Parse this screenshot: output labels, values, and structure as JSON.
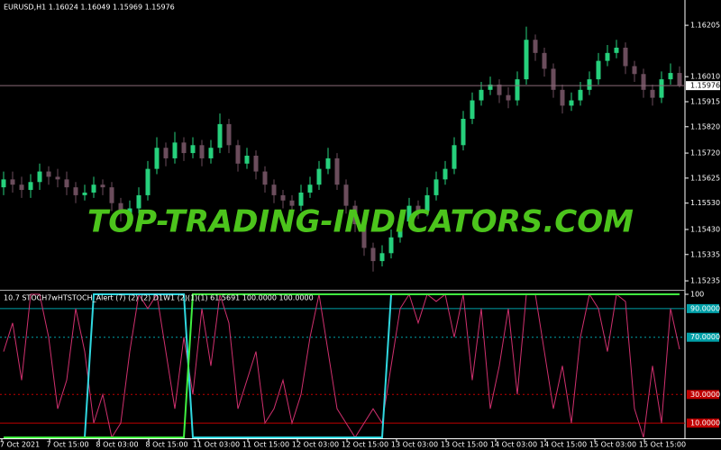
{
  "chart_data": [
    {
      "type": "candlestick",
      "title": "EURUSD,H1  1.16024 1.16049 1.15969 1.15976",
      "open": [
        1.1559,
        1.1562,
        1.156,
        1.1558,
        1.1561,
        1.1565,
        1.1563,
        1.1562,
        1.1559,
        1.1556,
        1.1557,
        1.156,
        1.1559,
        1.1553,
        1.1549,
        1.1551,
        1.1556,
        1.1566,
        1.1574,
        1.157,
        1.1576,
        1.1572,
        1.1575,
        1.157,
        1.1574,
        1.1583,
        1.1575,
        1.1568,
        1.1571,
        1.1565,
        1.156,
        1.1556,
        1.1554,
        1.1552,
        1.1557,
        1.156,
        1.1566,
        1.157,
        1.156,
        1.1552,
        1.1545,
        1.1536,
        1.1531,
        1.1534,
        1.154,
        1.1546,
        1.1552,
        1.155,
        1.1556,
        1.1562,
        1.1566,
        1.1575,
        1.1585,
        1.1592,
        1.1596,
        1.1598,
        1.1594,
        1.1592,
        1.16,
        1.1615,
        1.161,
        1.1604,
        1.1596,
        1.159,
        1.1592,
        1.1596,
        1.16,
        1.1607,
        1.161,
        1.1612,
        1.1605,
        1.1602,
        1.1596,
        1.1593,
        1.16,
        1.16024
      ],
      "high": [
        1.1565,
        1.1565,
        1.1563,
        1.1564,
        1.1568,
        1.1567,
        1.1566,
        1.1565,
        1.1561,
        1.156,
        1.1563,
        1.1562,
        1.1561,
        1.1555,
        1.1554,
        1.1559,
        1.1569,
        1.1578,
        1.1576,
        1.158,
        1.1578,
        1.1578,
        1.1577,
        1.1577,
        1.1587,
        1.1585,
        1.1577,
        1.1574,
        1.1573,
        1.1567,
        1.1562,
        1.1558,
        1.1556,
        1.156,
        1.1563,
        1.1569,
        1.1574,
        1.1572,
        1.1562,
        1.1554,
        1.1547,
        1.1538,
        1.1537,
        1.1543,
        1.1549,
        1.1555,
        1.1554,
        1.1559,
        1.1565,
        1.1569,
        1.1578,
        1.1588,
        1.1595,
        1.1599,
        1.1601,
        1.16,
        1.1597,
        1.1603,
        1.162,
        1.1617,
        1.1612,
        1.1606,
        1.1598,
        1.1595,
        1.1599,
        1.1603,
        1.161,
        1.1613,
        1.1615,
        1.1614,
        1.1607,
        1.1604,
        1.1598,
        1.1603,
        1.1606,
        1.16049
      ],
      "low": [
        1.1556,
        1.1557,
        1.1555,
        1.1555,
        1.1558,
        1.156,
        1.1559,
        1.1556,
        1.1553,
        1.1554,
        1.1555,
        1.1556,
        1.155,
        1.1546,
        1.1547,
        1.1549,
        1.1554,
        1.1564,
        1.1567,
        1.1568,
        1.1569,
        1.157,
        1.1567,
        1.1568,
        1.1572,
        1.1572,
        1.1565,
        1.1566,
        1.1562,
        1.1557,
        1.1553,
        1.1551,
        1.1549,
        1.155,
        1.1555,
        1.1558,
        1.1564,
        1.1558,
        1.1549,
        1.1542,
        1.1533,
        1.1527,
        1.1529,
        1.1532,
        1.1538,
        1.1544,
        1.1547,
        1.1548,
        1.1554,
        1.156,
        1.1564,
        1.1573,
        1.1583,
        1.159,
        1.1594,
        1.1591,
        1.1589,
        1.159,
        1.1598,
        1.1607,
        1.1601,
        1.1593,
        1.1587,
        1.1588,
        1.159,
        1.1594,
        1.1598,
        1.1605,
        1.1608,
        1.1602,
        1.1599,
        1.1593,
        1.159,
        1.1591,
        1.1598,
        1.15969
      ],
      "close": [
        1.1562,
        1.156,
        1.1558,
        1.1561,
        1.1565,
        1.1563,
        1.1562,
        1.1559,
        1.1556,
        1.1557,
        1.156,
        1.1559,
        1.1553,
        1.1549,
        1.1551,
        1.1556,
        1.1566,
        1.1574,
        1.157,
        1.1576,
        1.1572,
        1.1575,
        1.157,
        1.1574,
        1.1583,
        1.1575,
        1.1568,
        1.1571,
        1.1565,
        1.156,
        1.1556,
        1.1554,
        1.1552,
        1.1557,
        1.156,
        1.1566,
        1.157,
        1.156,
        1.1552,
        1.1545,
        1.1536,
        1.1531,
        1.1534,
        1.154,
        1.1546,
        1.1552,
        1.155,
        1.1556,
        1.1562,
        1.1566,
        1.1575,
        1.1585,
        1.1592,
        1.1596,
        1.1598,
        1.1594,
        1.1592,
        1.16,
        1.1615,
        1.161,
        1.1604,
        1.1596,
        1.159,
        1.1592,
        1.1596,
        1.16,
        1.1607,
        1.161,
        1.1612,
        1.1605,
        1.1602,
        1.1596,
        1.1593,
        1.16,
        1.16024,
        1.15976
      ],
      "up_color": "#26d07c",
      "down_color": "#6b4d5c",
      "ylim": [
        1.15201,
        1.16301
      ],
      "yticks": [
        1.16205,
        {
          "value": 1.1601,
          "label": "1.16010"
        },
        1.15915,
        {
          "value": 1.1582,
          "label": "1.15820"
        },
        {
          "value": 1.1572,
          "label": "1.15720"
        },
        1.15625,
        {
          "value": 1.1553,
          "label": "1.15530"
        },
        {
          "value": 1.1543,
          "label": "1.15430"
        },
        1.15335,
        1.15235
      ],
      "last_price": 1.15976,
      "watermark": "TOP-TRADING-INDICATORS.COM"
    },
    {
      "type": "line",
      "title": "10.7 STOCH7wHTSTOCH_Alert (7) (2) (2) D1W1 (2)(1)(1) 61.5691 100.0000 100.0000",
      "series": [
        {
          "color": "#d0306e",
          "values": [
            60,
            80,
            40,
            100,
            100,
            70,
            20,
            40,
            90,
            60,
            10,
            30,
            0,
            10,
            60,
            100,
            90,
            100,
            60,
            20,
            70,
            30,
            90,
            50,
            100,
            80,
            20,
            40,
            60,
            10,
            20,
            40,
            10,
            30,
            70,
            100,
            60,
            20,
            10,
            0,
            10,
            20,
            10,
            50,
            90,
            100,
            80,
            100,
            95,
            100,
            70,
            100,
            40,
            90,
            20,
            50,
            90,
            30,
            100,
            100,
            60,
            20,
            50,
            10,
            70,
            100,
            90,
            60,
            100,
            95,
            20,
            0,
            50,
            10,
            90,
            61.5691
          ]
        },
        {
          "color": "#30d8e0",
          "values": [
            0,
            0,
            0,
            0,
            0,
            0,
            0,
            0,
            0,
            0,
            100,
            100,
            100,
            100,
            100,
            100,
            100,
            100,
            100,
            100,
            100,
            0,
            0,
            0,
            0,
            0,
            0,
            0,
            0,
            0,
            0,
            0,
            0,
            0,
            0,
            0,
            0,
            0,
            0,
            0,
            0,
            0,
            0,
            100,
            100,
            100,
            100,
            100,
            100,
            100,
            100,
            100,
            100,
            100,
            100,
            100,
            100,
            100,
            100,
            100,
            100,
            100,
            100,
            100,
            100,
            100,
            100,
            100,
            100,
            100,
            100,
            100,
            100,
            100,
            100,
            100
          ]
        },
        {
          "color": "#40f040",
          "values": [
            0,
            0,
            0,
            0,
            0,
            0,
            0,
            0,
            0,
            0,
            0,
            0,
            0,
            0,
            0,
            0,
            0,
            0,
            0,
            0,
            0,
            100,
            100,
            100,
            100,
            100,
            100,
            100,
            100,
            100,
            100,
            100,
            100,
            100,
            100,
            100,
            100,
            100,
            100,
            100,
            100,
            100,
            100,
            100,
            100,
            100,
            100,
            100,
            100,
            100,
            100,
            100,
            100,
            100,
            100,
            100,
            100,
            100,
            100,
            100,
            100,
            100,
            100,
            100,
            100,
            100,
            100,
            100,
            100,
            100,
            100,
            100,
            100,
            100,
            100,
            100
          ]
        }
      ],
      "ylim": [
        0,
        100
      ],
      "yticks": [
        100,
        {
          "value": 90,
          "label": "90.0000"
        },
        {
          "value": 70,
          "label": "70.0000"
        },
        {
          "value": 30,
          "label": "30.0000"
        },
        {
          "value": 10,
          "label": "10.0000"
        }
      ],
      "ytick_colors": [
        "#000000",
        "#00a0a8",
        "#00a0a8",
        "#c00000",
        "#c00000"
      ]
    }
  ],
  "time_axis": [
    "7 Oct 2021",
    "7 Oct 15:00",
    "8 Oct 03:00",
    "8 Oct 15:00",
    "11 Oct 03:00",
    "11 Oct 15:00",
    "12 Oct 03:00",
    "12 Oct 15:00",
    "13 Oct 03:00",
    "13 Oct 15:00",
    "14 Oct 03:00",
    "14 Oct 15:00",
    "15 Oct 03:00",
    "15 Oct 15:00"
  ]
}
